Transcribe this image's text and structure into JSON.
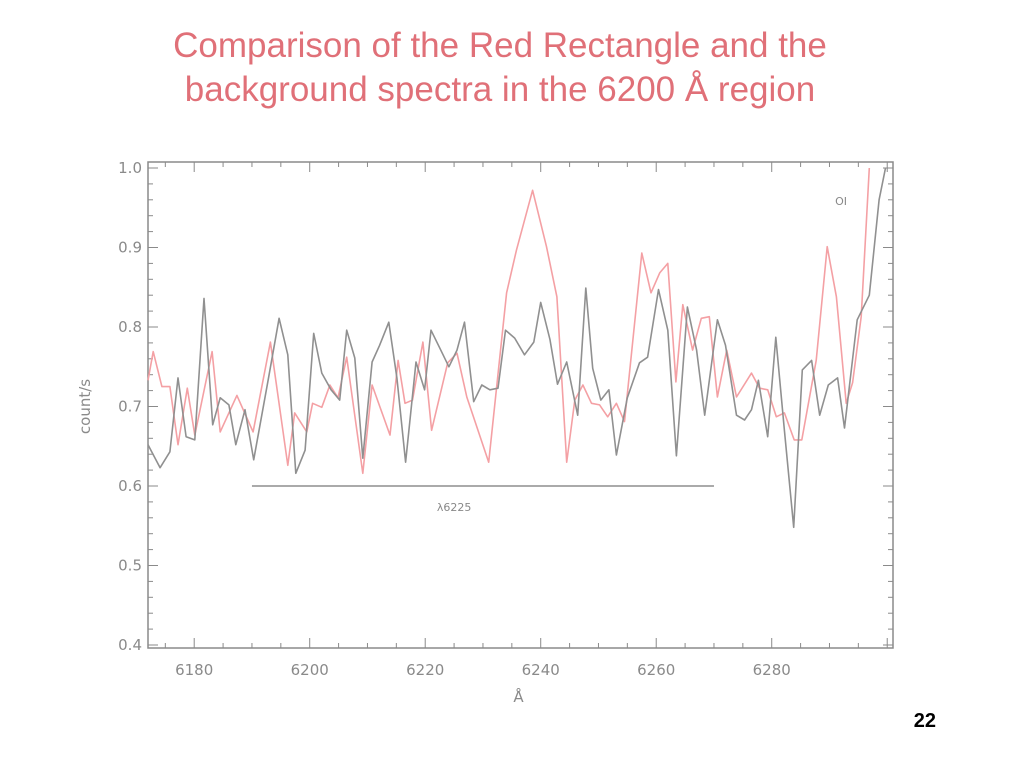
{
  "slide": {
    "title_line1": "Comparison of the Red Rectangle and the",
    "title_line2": "background spectra in the 6200 Å region",
    "page_number": "22"
  },
  "colors": {
    "title": "#e07078",
    "red_rectangle": "#f4a0a4",
    "background": "#909090",
    "axis": "#8a8a8a"
  },
  "chart_data": {
    "type": "line",
    "title": "",
    "xlabel": "Å",
    "ylabel": "count/s",
    "xlim": [
      6172,
      6301
    ],
    "ylim": [
      0.4,
      1.0
    ],
    "xticks": [
      6180,
      6200,
      6220,
      6240,
      6260,
      6280
    ],
    "yticks": [
      "0.4",
      "0.5",
      "0.6",
      "0.7",
      "0.8",
      "0.9",
      "1.0"
    ],
    "grid": false,
    "annotations": [
      {
        "text": "OI",
        "x": 6292,
        "y": 0.96
      },
      {
        "text": "λ6225",
        "x": 6225,
        "y": 0.575,
        "bar_from": 6190,
        "bar_to": 6270,
        "bar_y": 0.6
      }
    ],
    "series": [
      {
        "name": "Red Rectangle",
        "color": "#f4a0a4",
        "points": [
          [
            6172.0,
            0.733
          ],
          [
            6172.9,
            0.769
          ],
          [
            6174.4,
            0.725
          ],
          [
            6175.8,
            0.725
          ],
          [
            6177.2,
            0.652
          ],
          [
            6178.8,
            0.723
          ],
          [
            6180.1,
            0.664
          ],
          [
            6183.1,
            0.769
          ],
          [
            6184.5,
            0.668
          ],
          [
            6187.4,
            0.714
          ],
          [
            6190.2,
            0.668
          ],
          [
            6193.2,
            0.781
          ],
          [
            6196.2,
            0.626
          ],
          [
            6197.4,
            0.692
          ],
          [
            6199.5,
            0.668
          ],
          [
            6200.5,
            0.704
          ],
          [
            6202.1,
            0.699
          ],
          [
            6203.5,
            0.727
          ],
          [
            6204.9,
            0.711
          ],
          [
            6206.4,
            0.762
          ],
          [
            6209.2,
            0.616
          ],
          [
            6210.8,
            0.727
          ],
          [
            6213.9,
            0.664
          ],
          [
            6215.3,
            0.758
          ],
          [
            6216.5,
            0.704
          ],
          [
            6217.8,
            0.708
          ],
          [
            6219.6,
            0.781
          ],
          [
            6221.1,
            0.67
          ],
          [
            6223.9,
            0.755
          ],
          [
            6225.5,
            0.767
          ],
          [
            6227.2,
            0.712
          ],
          [
            6231.0,
            0.63
          ],
          [
            6234.1,
            0.843
          ],
          [
            6235.8,
            0.897
          ],
          [
            6238.6,
            0.972
          ],
          [
            6241.0,
            0.901
          ],
          [
            6242.8,
            0.838
          ],
          [
            6244.5,
            0.63
          ],
          [
            6245.9,
            0.708
          ],
          [
            6247.3,
            0.727
          ],
          [
            6248.8,
            0.704
          ],
          [
            6250.2,
            0.702
          ],
          [
            6251.6,
            0.687
          ],
          [
            6253.1,
            0.704
          ],
          [
            6254.5,
            0.681
          ],
          [
            6257.5,
            0.893
          ],
          [
            6259.1,
            0.843
          ],
          [
            6260.6,
            0.868
          ],
          [
            6262.0,
            0.88
          ],
          [
            6263.4,
            0.731
          ],
          [
            6264.6,
            0.828
          ],
          [
            6266.3,
            0.771
          ],
          [
            6267.8,
            0.811
          ],
          [
            6269.2,
            0.813
          ],
          [
            6270.6,
            0.712
          ],
          [
            6272.2,
            0.771
          ],
          [
            6273.9,
            0.712
          ],
          [
            6276.5,
            0.742
          ],
          [
            6277.9,
            0.723
          ],
          [
            6279.3,
            0.721
          ],
          [
            6280.8,
            0.687
          ],
          [
            6282.2,
            0.692
          ],
          [
            6283.9,
            0.658
          ],
          [
            6285.2,
            0.658
          ],
          [
            6287.7,
            0.758
          ],
          [
            6289.6,
            0.901
          ],
          [
            6291.2,
            0.838
          ],
          [
            6292.9,
            0.704
          ],
          [
            6294.0,
            0.73
          ],
          [
            6295.5,
            0.813
          ],
          [
            6296.9,
            1.0
          ]
        ]
      },
      {
        "name": "Background",
        "color": "#909090",
        "points": [
          [
            6172.0,
            0.652
          ],
          [
            6174.1,
            0.623
          ],
          [
            6175.8,
            0.643
          ],
          [
            6177.2,
            0.736
          ],
          [
            6178.6,
            0.662
          ],
          [
            6180.1,
            0.658
          ],
          [
            6181.7,
            0.836
          ],
          [
            6183.2,
            0.677
          ],
          [
            6184.5,
            0.711
          ],
          [
            6186.0,
            0.702
          ],
          [
            6187.2,
            0.652
          ],
          [
            6188.8,
            0.696
          ],
          [
            6190.3,
            0.633
          ],
          [
            6192.8,
            0.733
          ],
          [
            6194.7,
            0.811
          ],
          [
            6196.2,
            0.765
          ],
          [
            6197.6,
            0.616
          ],
          [
            6199.2,
            0.645
          ],
          [
            6200.7,
            0.792
          ],
          [
            6202.1,
            0.742
          ],
          [
            6203.7,
            0.721
          ],
          [
            6205.2,
            0.708
          ],
          [
            6206.4,
            0.796
          ],
          [
            6207.8,
            0.761
          ],
          [
            6209.2,
            0.635
          ],
          [
            6210.8,
            0.756
          ],
          [
            6212.1,
            0.777
          ],
          [
            6213.7,
            0.806
          ],
          [
            6215.1,
            0.736
          ],
          [
            6216.6,
            0.63
          ],
          [
            6218.4,
            0.756
          ],
          [
            6219.9,
            0.721
          ],
          [
            6221.0,
            0.796
          ],
          [
            6222.5,
            0.774
          ],
          [
            6224.1,
            0.75
          ],
          [
            6225.5,
            0.771
          ],
          [
            6226.8,
            0.806
          ],
          [
            6228.4,
            0.706
          ],
          [
            6229.8,
            0.727
          ],
          [
            6231.2,
            0.721
          ],
          [
            6232.6,
            0.723
          ],
          [
            6233.9,
            0.796
          ],
          [
            6235.5,
            0.786
          ],
          [
            6237.2,
            0.765
          ],
          [
            6238.8,
            0.781
          ],
          [
            6240.0,
            0.831
          ],
          [
            6241.6,
            0.784
          ],
          [
            6242.9,
            0.728
          ],
          [
            6244.5,
            0.756
          ],
          [
            6246.4,
            0.689
          ],
          [
            6247.8,
            0.849
          ],
          [
            6249.0,
            0.748
          ],
          [
            6250.4,
            0.708
          ],
          [
            6251.8,
            0.721
          ],
          [
            6253.1,
            0.639
          ],
          [
            6255.0,
            0.711
          ],
          [
            6257.1,
            0.755
          ],
          [
            6258.5,
            0.762
          ],
          [
            6260.4,
            0.847
          ],
          [
            6262.0,
            0.796
          ],
          [
            6263.5,
            0.638
          ],
          [
            6265.4,
            0.825
          ],
          [
            6267.0,
            0.771
          ],
          [
            6268.4,
            0.689
          ],
          [
            6270.6,
            0.809
          ],
          [
            6272.0,
            0.777
          ],
          [
            6273.9,
            0.689
          ],
          [
            6275.3,
            0.683
          ],
          [
            6276.5,
            0.696
          ],
          [
            6277.7,
            0.733
          ],
          [
            6279.3,
            0.662
          ],
          [
            6280.7,
            0.787
          ],
          [
            6282.2,
            0.67
          ],
          [
            6283.8,
            0.548
          ],
          [
            6285.3,
            0.746
          ],
          [
            6286.9,
            0.758
          ],
          [
            6288.3,
            0.689
          ],
          [
            6289.8,
            0.727
          ],
          [
            6291.4,
            0.736
          ],
          [
            6292.6,
            0.673
          ],
          [
            6294.8,
            0.809
          ],
          [
            6296.9,
            0.84
          ],
          [
            6298.6,
            0.96
          ],
          [
            6299.7,
            1.0
          ]
        ]
      }
    ]
  }
}
